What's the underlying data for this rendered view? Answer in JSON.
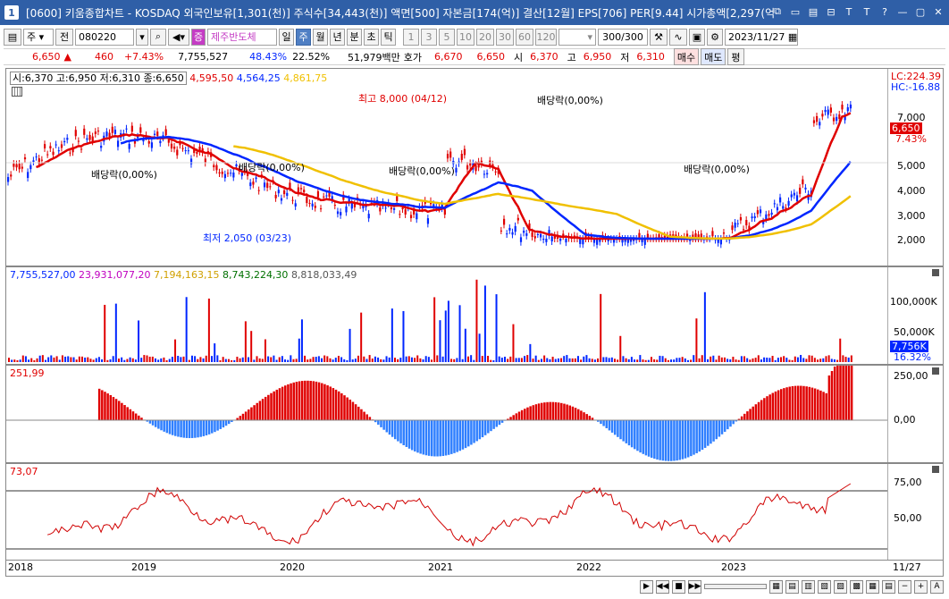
{
  "window": {
    "number": "1",
    "title": "[0600] 키움종합차트 - KOSDAQ 외국인보유[1,301(천)] 주식수[34,443(천)] 액면[500] 자본금[174(억)] 결산[12월] EPS[706] PER[9.44] 시가총액[2,297(억",
    "buttons": [
      "⧉",
      "▭",
      "▤",
      "⊟",
      "T",
      "T",
      "?",
      "—",
      "▢",
      "✕"
    ]
  },
  "toolbar": {
    "period_type": "주",
    "market_type": "전",
    "code": "080220",
    "stock_name": "제주반도체",
    "tabs": [
      "일",
      "주",
      "월",
      "년",
      "분",
      "초",
      "틱"
    ],
    "active_tab": "주",
    "intervals": [
      "1",
      "3",
      "5",
      "10",
      "20",
      "30",
      "60",
      "120"
    ],
    "count": "300/300",
    "date": "2023/11/27"
  },
  "quote": {
    "price": "6,650",
    "change": "460",
    "change_pct": "+7.43%",
    "volume": "7,755,527",
    "turnover": "48.43%",
    "ratio": "22.52%",
    "amount": "51,979백만",
    "hoga_label": "호가",
    "ask": "6,670",
    "bid": "6,650",
    "open_label": "시",
    "open": "6,370",
    "high_label": "고",
    "high": "6,950",
    "low_label": "저",
    "low": "6,310",
    "buy_label": "매수",
    "sell_label": "매도",
    "eval_label": "평"
  },
  "price_panel": {
    "legend": "시:6,370 고:6,950 저:6,310 종:6,650",
    "ma_values": [
      "4,595,50",
      "4,564,25",
      "4,861,75"
    ],
    "ma_colors": [
      "#e00000",
      "#0026ff",
      "#f0c000"
    ],
    "lc": "LC:224.39",
    "hc": "HC:-16.88",
    "current_tag": "6,650",
    "current_pct": "7.43%",
    "y_ticks": [
      "7,000",
      "6,000",
      "5,000",
      "4,000",
      "3,000",
      "2,000"
    ],
    "high_note": "최고 8,000 (04/12)",
    "low_note": "최저 2,050 (03/23)",
    "dividend": "배당락(0,00%)"
  },
  "volume_panel": {
    "legend": [
      "7,755,527,00",
      "23,931,077,20",
      "7,194,163,15",
      "8,743,224,30",
      "8,818,033,49"
    ],
    "legend_colors": [
      "#0026ff",
      "#c000c0",
      "#d0a000",
      "#007000",
      "#555555"
    ],
    "y_ticks": [
      "100,000K",
      "50,000K"
    ],
    "current_tag": "7,756K",
    "pct_tag": "16.32%"
  },
  "macd_panel": {
    "legend": "251,99",
    "y_ticks": [
      "250,00",
      "0,00"
    ]
  },
  "rsi_panel": {
    "legend": "73,07",
    "y_ticks": [
      "75,00",
      "50,00"
    ]
  },
  "x_axis": {
    "labels": [
      "2018",
      "2019",
      "2020",
      "2021",
      "2022",
      "2023",
      "11/27"
    ]
  }
}
